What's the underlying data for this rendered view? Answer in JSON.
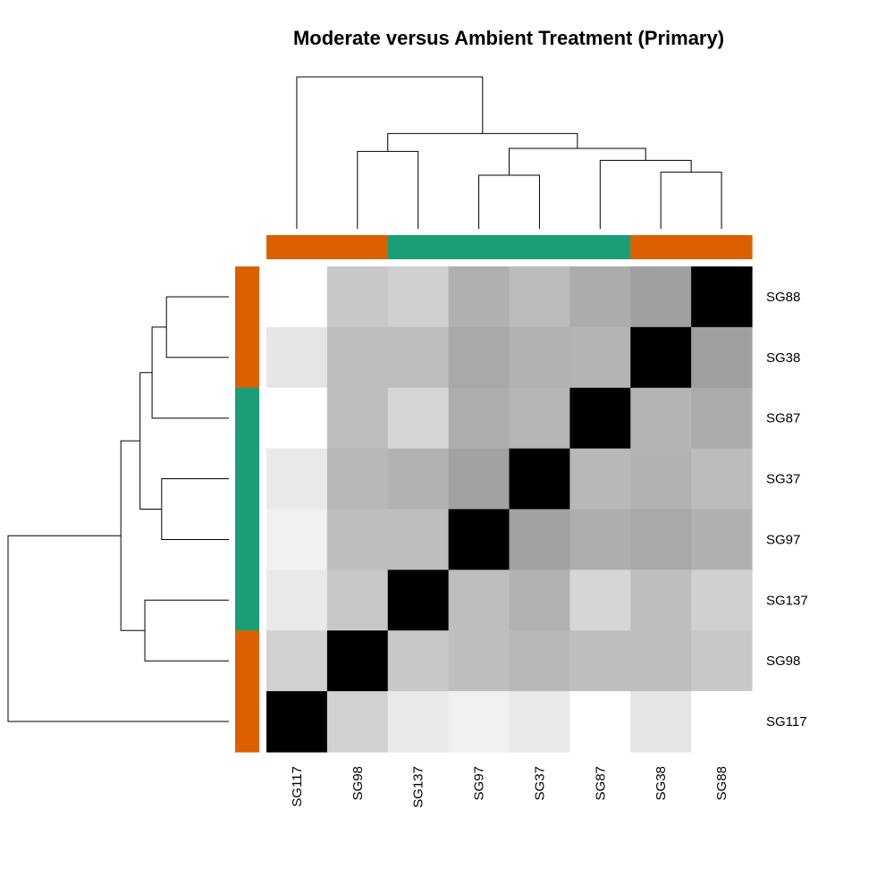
{
  "chart_data": {
    "type": "heatmap",
    "title": "Moderate versus Ambient Treatment (Primary)",
    "columns": [
      "SG117",
      "SG98",
      "SG137",
      "SG97",
      "SG37",
      "SG87",
      "SG38",
      "SG88"
    ],
    "rows": [
      "SG88",
      "SG38",
      "SG87",
      "SG37",
      "SG97",
      "SG137",
      "SG98",
      "SG117"
    ],
    "group_colors": {
      "orange": "#DD6000",
      "teal": "#1B9E77"
    },
    "column_groups": [
      "orange",
      "orange",
      "teal",
      "teal",
      "teal",
      "teal",
      "orange",
      "orange"
    ],
    "row_groups": [
      "orange",
      "orange",
      "teal",
      "teal",
      "teal",
      "teal",
      "orange",
      "orange"
    ],
    "color_scale": {
      "low": "#000000",
      "high": "#ffffff",
      "min": 0,
      "max": 255
    },
    "values": [
      [
        255,
        200,
        208,
        176,
        188,
        172,
        160,
        0
      ],
      [
        229,
        190,
        190,
        168,
        178,
        180,
        0,
        160
      ],
      [
        255,
        190,
        214,
        174,
        182,
        0,
        180,
        172
      ],
      [
        233,
        184,
        178,
        162,
        0,
        184,
        178,
        188
      ],
      [
        240,
        190,
        190,
        0,
        162,
        174,
        168,
        176
      ],
      [
        233,
        200,
        0,
        190,
        178,
        214,
        190,
        208
      ],
      [
        209,
        0,
        200,
        190,
        184,
        190,
        190,
        200
      ],
      [
        0,
        209,
        233,
        240,
        233,
        255,
        229,
        255
      ]
    ],
    "column_dendrogram": {
      "leaves": [
        "SG117",
        "SG98",
        "SG137",
        "SG97",
        "SG37",
        "SG87",
        "SG38",
        "SG88"
      ],
      "merges": [
        {
          "left": "L1",
          "right": "L2",
          "height": 0.26
        },
        {
          "left": "L6",
          "right": "L7",
          "height": 0.19
        },
        {
          "left": "L5",
          "right": "N1",
          "height": 0.23
        },
        {
          "left": "L3",
          "right": "L4",
          "height": 0.18
        },
        {
          "left": "N3",
          "right": "N2",
          "height": 0.27
        },
        {
          "left": "N0",
          "right": "N4",
          "height": 0.32
        },
        {
          "left": "L0",
          "right": "N5",
          "height": 0.51
        }
      ]
    },
    "row_dendrogram": {
      "leaves": [
        "SG88",
        "SG38",
        "SG87",
        "SG37",
        "SG97",
        "SG137",
        "SG98",
        "SG117"
      ],
      "merges": [
        {
          "left": "L0",
          "right": "L1",
          "height": 0.26
        },
        {
          "left": "N0",
          "right": "L2",
          "height": 0.32
        },
        {
          "left": "L3",
          "right": "L4",
          "height": 0.28
        },
        {
          "left": "N1",
          "right": "N2",
          "height": 0.37
        },
        {
          "left": "L5",
          "right": "L6",
          "height": 0.35
        },
        {
          "left": "N3",
          "right": "N4",
          "height": 0.45
        },
        {
          "left": "N5",
          "right": "L7",
          "height": 0.92
        }
      ]
    }
  }
}
